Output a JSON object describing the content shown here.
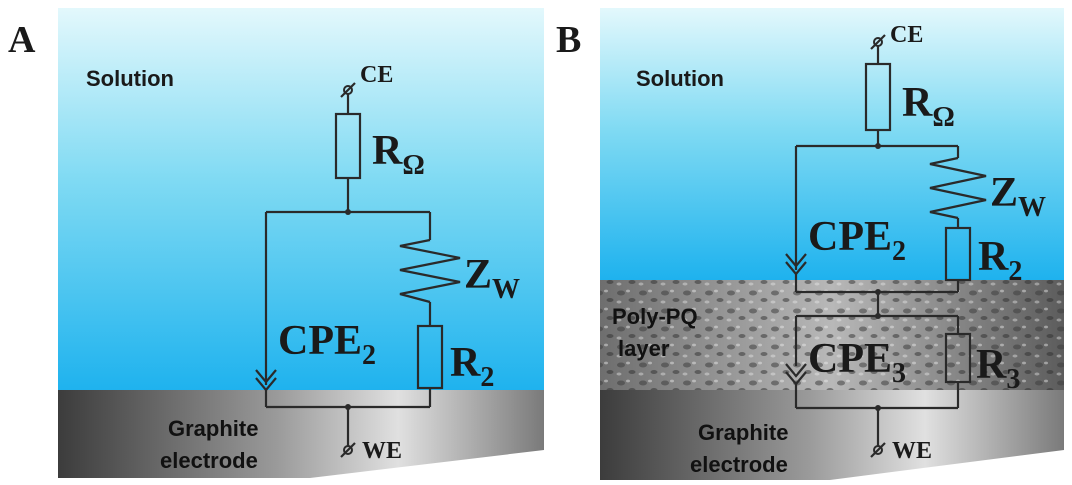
{
  "panels": [
    {
      "letter": "A",
      "solution_label": "Solution",
      "electrode_line1": "Graphite",
      "electrode_line2": "electrode",
      "ce_label": "CE",
      "we_label": "WE",
      "r_omega_main": "R",
      "r_omega_sub": "Ω",
      "zw_main": "Z",
      "zw_sub": "W",
      "cpe_main": "CPE",
      "cpe_sub": "2",
      "r2_main": "R",
      "r2_sub": "2"
    },
    {
      "letter": "B",
      "solution_label": "Solution",
      "layer_line1": "Poly-PQ",
      "layer_line2": "layer",
      "electrode_line1": "Graphite",
      "electrode_line2": "electrode",
      "ce_label": "CE",
      "we_label": "WE",
      "r_omega_main": "R",
      "r_omega_sub": "Ω",
      "zw_main": "Z",
      "zw_sub": "W",
      "cpe2_main": "CPE",
      "cpe2_sub": "2",
      "r2_main": "R",
      "r2_sub": "2",
      "cpe3_main": "CPE",
      "cpe3_sub": "3",
      "r3_main": "R",
      "r3_sub": "3"
    }
  ],
  "colors": {
    "solution_top": "#d8f6fb",
    "solution_bottom": "#1fb5ee",
    "electrode_dark": "#3a3a3a",
    "electrode_light": "#d0d0d0",
    "layer_gray": "#8a8a8a"
  }
}
